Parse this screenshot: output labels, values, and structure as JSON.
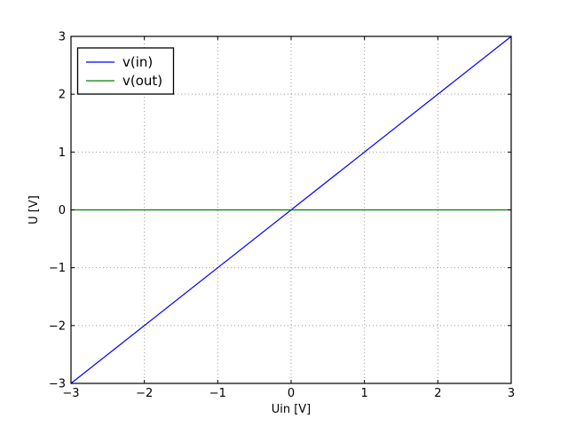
{
  "figure": {
    "background": "#ffffff",
    "frame_color": "#000000"
  },
  "chart_data": {
    "type": "line",
    "title": "",
    "xlabel": "Uin [V]",
    "ylabel": "U [V]",
    "xlim": [
      -3,
      3
    ],
    "ylim": [
      -3,
      3
    ],
    "xticks": [
      -3,
      -2,
      -1,
      0,
      1,
      2,
      3
    ],
    "yticks": [
      -3,
      -2,
      -1,
      0,
      1,
      2,
      3
    ],
    "xtick_labels": [
      "−3",
      "−2",
      "−1",
      "0",
      "1",
      "2",
      "3"
    ],
    "ytick_labels": [
      "−3",
      "−2",
      "−1",
      "0",
      "1",
      "2",
      "3"
    ],
    "grid": true,
    "grid_style": "dotted",
    "grid_color": "#999999",
    "legend": {
      "position": "upper-left",
      "labels": [
        "v(in)",
        "v(out)"
      ]
    },
    "series": [
      {
        "name": "v(in)",
        "color": "#0000ff",
        "x": [
          -3,
          3
        ],
        "y": [
          -3,
          3
        ]
      },
      {
        "name": "v(out)",
        "color": "#008000",
        "x": [
          -3,
          3
        ],
        "y": [
          0,
          0
        ]
      }
    ]
  }
}
